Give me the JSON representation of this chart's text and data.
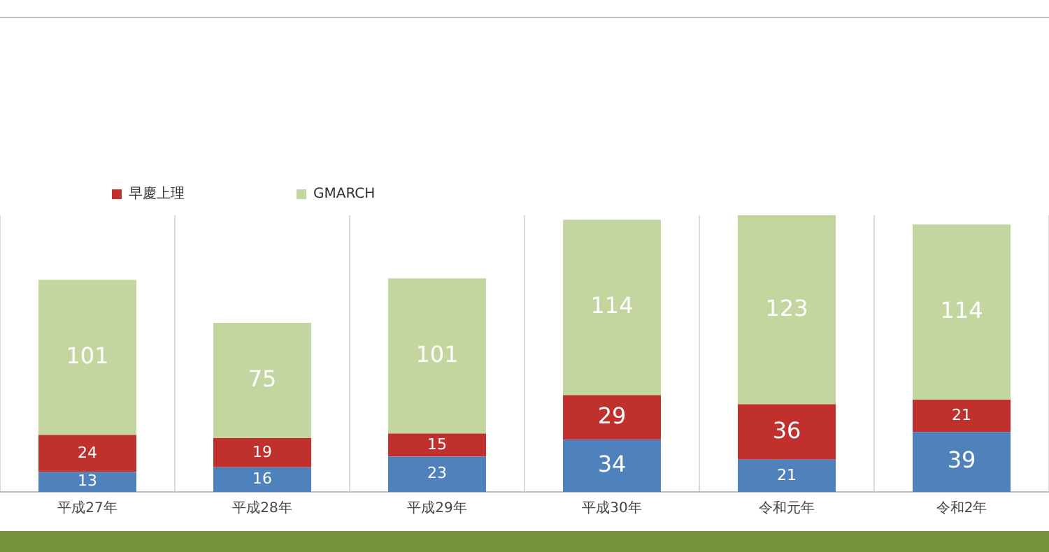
{
  "chart_data": {
    "type": "bar",
    "stacked": true,
    "categories": [
      "平成27年",
      "平成28年",
      "平成29年",
      "平成30年",
      "令和元年",
      "令和2年"
    ],
    "series": [
      {
        "color": "#4f81bd",
        "values": [
          13,
          16,
          23,
          34,
          21,
          39
        ]
      },
      {
        "name": "早慶上理",
        "color": "#c0302c",
        "values": [
          24,
          19,
          15,
          29,
          36,
          21
        ]
      },
      {
        "name": "GMARCH",
        "color": "#c4d6a0",
        "values": [
          101,
          75,
          101,
          114,
          123,
          114
        ]
      }
    ],
    "data_labels": true,
    "grid": "x",
    "legend": "top left"
  }
}
